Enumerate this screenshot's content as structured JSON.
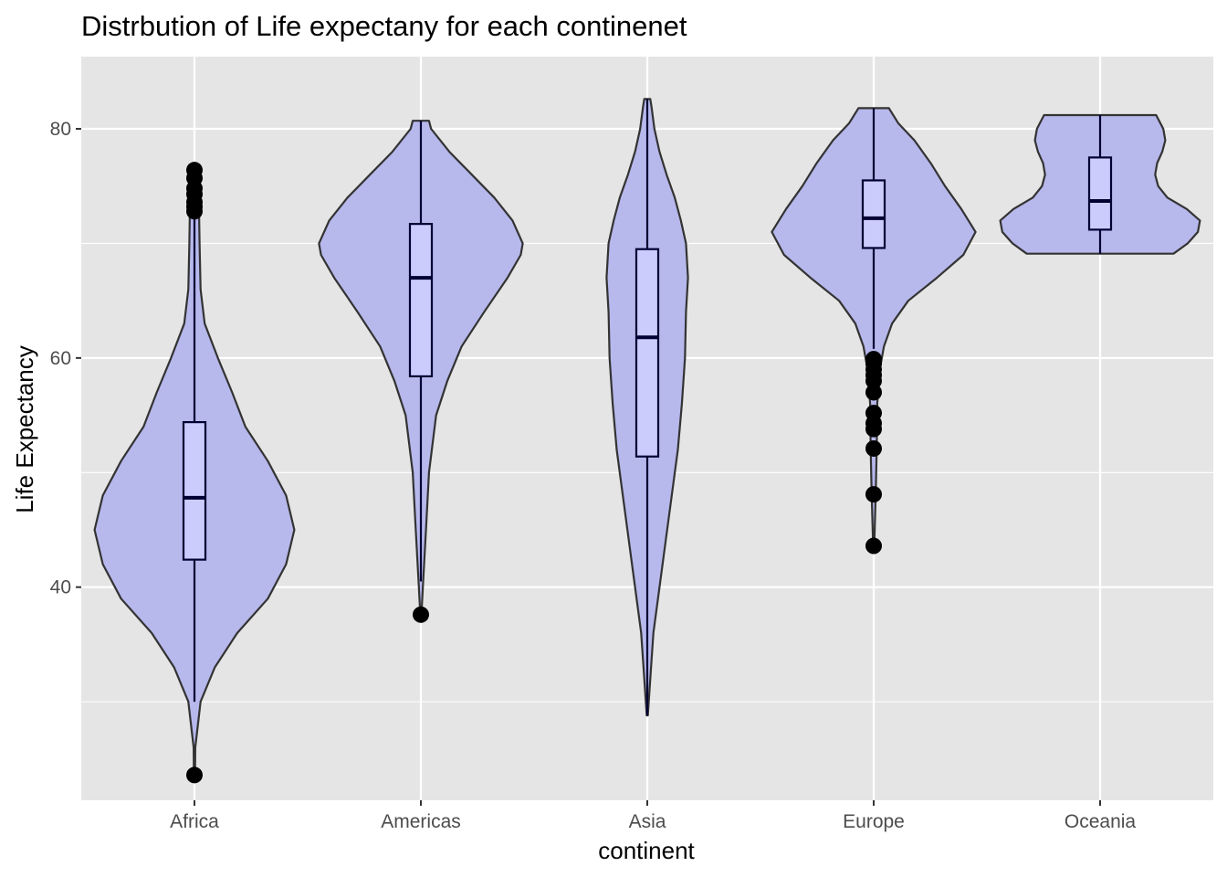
{
  "chart_data": {
    "type": "violin",
    "title": "Distrbution of Life expectany for each continenet",
    "xlabel": "continent",
    "ylabel": "Life Expectancy",
    "categories": [
      "Africa",
      "Americas",
      "Asia",
      "Europe",
      "Oceania"
    ],
    "ylim": [
      21.4,
      86.3
    ],
    "yticks": [
      40,
      60,
      80
    ],
    "y_tick_labels": [
      "40",
      "60",
      "80"
    ],
    "grid": true,
    "colors": {
      "panel_background": "#e5e5e5",
      "grid": "#ffffff",
      "violin_fill": "#b7b8ec",
      "violin_stroke": "#333333",
      "box_fill": "#cbccfc",
      "box_stroke": "#000033",
      "outlier": "#000000"
    },
    "violins": [
      {
        "continent": "Africa",
        "min": 23.6,
        "max": 76.4,
        "profile": [
          [
            23.6,
            0.005
          ],
          [
            26,
            0.008
          ],
          [
            30,
            0.06
          ],
          [
            33,
            0.2
          ],
          [
            36,
            0.42
          ],
          [
            39,
            0.72
          ],
          [
            42,
            0.9
          ],
          [
            45,
            0.98
          ],
          [
            48,
            0.9
          ],
          [
            51,
            0.72
          ],
          [
            54,
            0.5
          ],
          [
            57,
            0.37
          ],
          [
            60,
            0.23
          ],
          [
            63,
            0.1
          ],
          [
            66,
            0.06
          ],
          [
            70,
            0.05
          ],
          [
            73,
            0.045
          ],
          [
            75,
            0.03
          ],
          [
            76.4,
            0.005
          ]
        ],
        "whisker_low": 30.0,
        "q1": 42.4,
        "median": 47.8,
        "q3": 54.4,
        "whisker_high": 72.7,
        "outliers": [
          23.6,
          72.8,
          73.2,
          73.6,
          74.3,
          74.8,
          75.7,
          76.4
        ]
      },
      {
        "continent": "Americas",
        "min": 37.6,
        "max": 80.7,
        "profile": [
          [
            37.6,
            0.005
          ],
          [
            40,
            0.02
          ],
          [
            45,
            0.05
          ],
          [
            50,
            0.08
          ],
          [
            55,
            0.15
          ],
          [
            58,
            0.26
          ],
          [
            61,
            0.4
          ],
          [
            64,
            0.62
          ],
          [
            67,
            0.85
          ],
          [
            69,
            0.98
          ],
          [
            70,
            1.0
          ],
          [
            72,
            0.9
          ],
          [
            74,
            0.72
          ],
          [
            76,
            0.5
          ],
          [
            78,
            0.28
          ],
          [
            80,
            0.1
          ],
          [
            80.7,
            0.08
          ]
        ],
        "whisker_low": 40.5,
        "q1": 58.4,
        "median": 67.0,
        "q3": 71.7,
        "whisker_high": 80.7,
        "outliers": [
          37.6
        ]
      },
      {
        "continent": "Asia",
        "min": 28.8,
        "max": 82.6,
        "profile": [
          [
            28.8,
            0.005
          ],
          [
            32,
            0.03
          ],
          [
            36,
            0.06
          ],
          [
            40,
            0.12
          ],
          [
            44,
            0.18
          ],
          [
            48,
            0.24
          ],
          [
            52,
            0.3
          ],
          [
            56,
            0.34
          ],
          [
            60,
            0.37
          ],
          [
            64,
            0.38
          ],
          [
            67,
            0.4
          ],
          [
            70,
            0.38
          ],
          [
            72,
            0.33
          ],
          [
            74,
            0.27
          ],
          [
            76,
            0.19
          ],
          [
            78,
            0.12
          ],
          [
            80,
            0.07
          ],
          [
            82,
            0.04
          ],
          [
            82.6,
            0.03
          ]
        ],
        "whisker_low": 28.8,
        "q1": 51.4,
        "median": 61.8,
        "q3": 69.5,
        "whisker_high": 82.6,
        "outliers": []
      },
      {
        "continent": "Europe",
        "min": 43.6,
        "max": 81.8,
        "profile": [
          [
            43.6,
            0.005
          ],
          [
            48,
            0.02
          ],
          [
            52,
            0.03
          ],
          [
            56,
            0.035
          ],
          [
            59,
            0.06
          ],
          [
            61,
            0.1
          ],
          [
            63,
            0.18
          ],
          [
            65,
            0.34
          ],
          [
            67,
            0.62
          ],
          [
            69,
            0.88
          ],
          [
            71,
            1.0
          ],
          [
            73,
            0.86
          ],
          [
            75,
            0.7
          ],
          [
            77,
            0.56
          ],
          [
            79,
            0.4
          ],
          [
            80.5,
            0.24
          ],
          [
            81.8,
            0.15
          ]
        ],
        "whisker_low": 60.8,
        "q1": 69.6,
        "median": 72.2,
        "q3": 75.5,
        "whisker_high": 81.8,
        "outliers": [
          43.6,
          48.1,
          52.1,
          53.8,
          54.3,
          55.2,
          57.0,
          58.0,
          58.5,
          59.0,
          59.5,
          59.9
        ]
      },
      {
        "continent": "Oceania",
        "min": 69.1,
        "max": 81.2,
        "profile": [
          [
            69.1,
            0.72
          ],
          [
            70,
            0.86
          ],
          [
            71,
            0.96
          ],
          [
            72,
            0.98
          ],
          [
            73,
            0.85
          ],
          [
            74,
            0.66
          ],
          [
            75,
            0.57
          ],
          [
            76,
            0.54
          ],
          [
            77,
            0.56
          ],
          [
            78,
            0.61
          ],
          [
            79,
            0.64
          ],
          [
            80,
            0.62
          ],
          [
            81.2,
            0.55
          ]
        ],
        "whisker_low": 69.1,
        "q1": 71.2,
        "median": 73.7,
        "q3": 77.5,
        "whisker_high": 81.2,
        "outliers": []
      }
    ]
  }
}
